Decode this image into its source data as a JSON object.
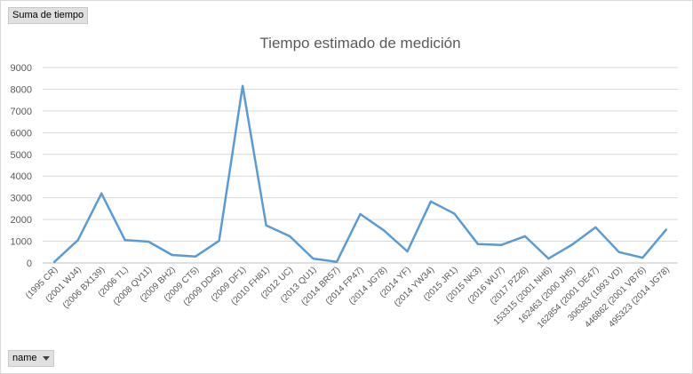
{
  "pivot": {
    "value_field": "Suma de tiempo",
    "axis_field": "name"
  },
  "chart_data": {
    "type": "line",
    "title": "Tiempo estimado de medición",
    "xlabel": "",
    "ylabel": "",
    "ylim": [
      0,
      9000
    ],
    "ystep": 1000,
    "grid": true,
    "legend": "none",
    "line_color": "#5b9bd5",
    "categories": [
      "(1995 CR)",
      "(2001 WJ4)",
      "(2006 BX139)",
      "(2006 TL)",
      "(2008 QV11)",
      "(2009 BH2)",
      "(2009 CT5)",
      "(2009 DD45)",
      "(2009 DF1)",
      "(2010 FH81)",
      "(2012 UC)",
      "(2013 QU1)",
      "(2014 BR57)",
      "(2014 FP47)",
      "(2014 JG78)",
      "(2014 YF)",
      "(2014 YW34)",
      "(2015 JR1)",
      "(2015 NK3)",
      "(2016 WU7)",
      "(2017 PZ26)",
      "153315 (2001 NH6)",
      "162463 (2000 JH5)",
      "162854 (2001 DE47)",
      "306383 (1993 VD)",
      "446862 (2001 VB76)",
      "495323 (2014 JG78)"
    ],
    "values": [
      50,
      1050,
      3200,
      1050,
      980,
      370,
      300,
      1020,
      8150,
      1730,
      1230,
      200,
      50,
      2250,
      1500,
      530,
      2830,
      2270,
      870,
      830,
      1230,
      200,
      840,
      1640,
      500,
      240,
      1530
    ]
  }
}
